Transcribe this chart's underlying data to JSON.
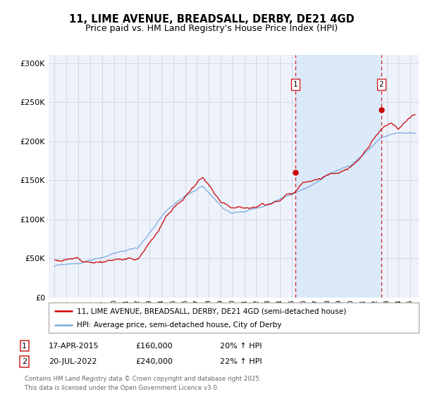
{
  "title": "11, LIME AVENUE, BREADSALL, DERBY, DE21 4GD",
  "subtitle": "Price paid vs. HM Land Registry's House Price Index (HPI)",
  "title_fontsize": 10.5,
  "subtitle_fontsize": 9,
  "background_color": "#ffffff",
  "plot_bg_color": "#eef2fb",
  "grid_color": "#d0d8e8",
  "shade_color": "#d8e8f8",
  "red_line_color": "#cc0000",
  "blue_line_color": "#7aaadd",
  "marker1_date_x": 2015.29,
  "marker1_y": 160000,
  "marker2_date_x": 2022.55,
  "marker2_y": 240000,
  "vline1_x": 2015.29,
  "vline2_x": 2022.55,
  "vline_color": "#cc2222",
  "ylim": [
    0,
    310000
  ],
  "xlim_start": 1994.5,
  "xlim_end": 2025.7,
  "ytick_labels": [
    "£0",
    "£50K",
    "£100K",
    "£150K",
    "£200K",
    "£250K",
    "£300K"
  ],
  "ytick_values": [
    0,
    50000,
    100000,
    150000,
    200000,
    250000,
    300000
  ],
  "xtick_years": [
    1995,
    1996,
    1997,
    1998,
    1999,
    2000,
    2001,
    2002,
    2003,
    2004,
    2005,
    2006,
    2007,
    2008,
    2009,
    2010,
    2011,
    2012,
    2013,
    2014,
    2015,
    2016,
    2017,
    2018,
    2019,
    2020,
    2021,
    2022,
    2023,
    2024,
    2025
  ],
  "legend_label_red": "11, LIME AVENUE, BREADSALL, DERBY, DE21 4GD (semi-detached house)",
  "legend_label_blue": "HPI: Average price, semi-detached house, City of Derby",
  "annotation1_label": "1",
  "annotation1_date": "17-APR-2015",
  "annotation1_price": "£160,000",
  "annotation1_hpi": "20% ↑ HPI",
  "annotation2_label": "2",
  "annotation2_date": "20-JUL-2022",
  "annotation2_price": "£240,000",
  "annotation2_hpi": "22% ↑ HPI",
  "footer": "Contains HM Land Registry data © Crown copyright and database right 2025.\nThis data is licensed under the Open Government Licence v3.0."
}
